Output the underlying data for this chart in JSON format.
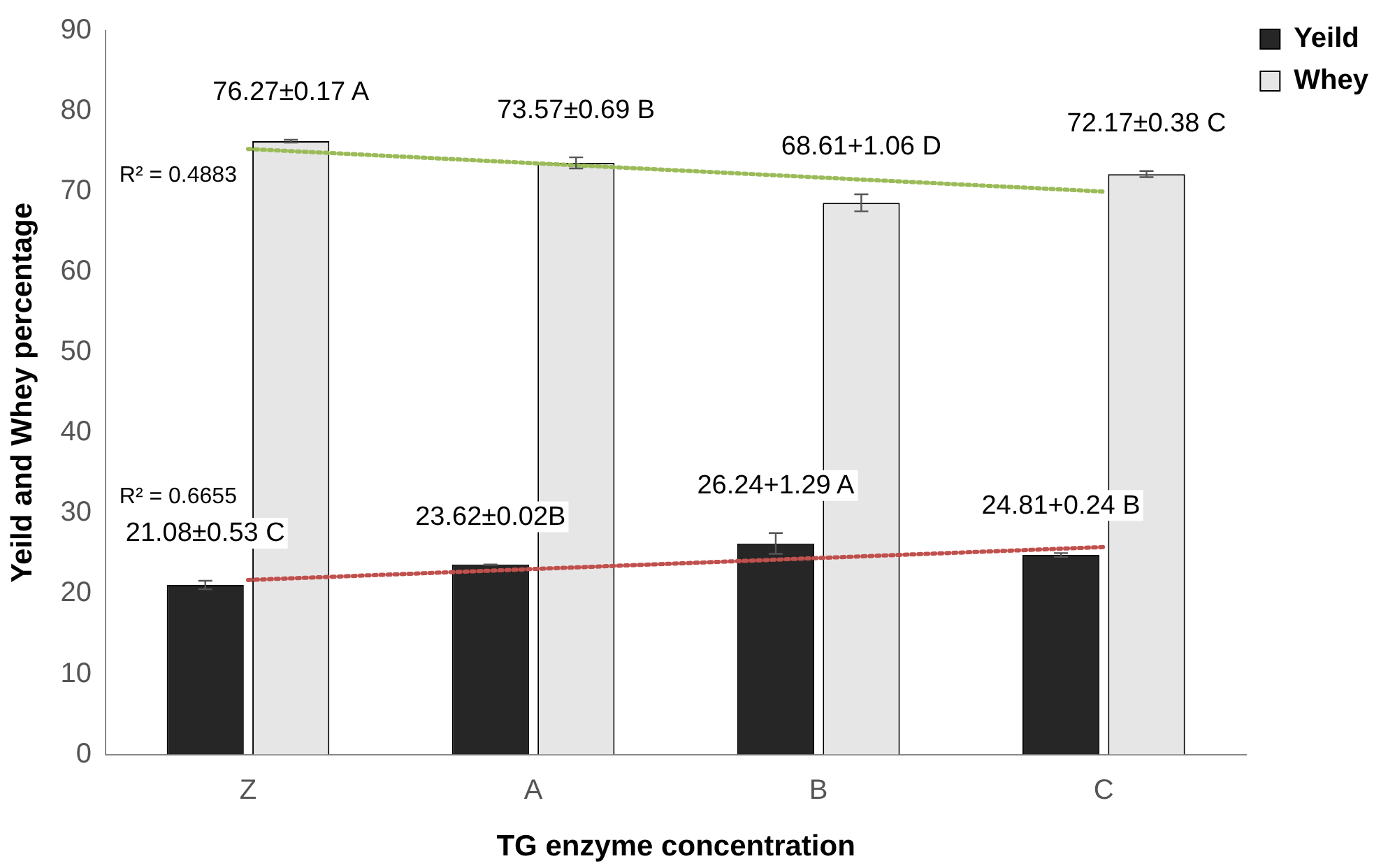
{
  "chart_data": {
    "type": "bar",
    "xlabel": "TG enzyme concentration",
    "ylabel": "Yeild and Whey percentage",
    "categories": [
      "Z",
      "A",
      "B",
      "C"
    ],
    "series": [
      {
        "name": "Yeild",
        "color": "#262626",
        "values": [
          21.08,
          23.62,
          26.24,
          24.81
        ],
        "errors": [
          0.53,
          0.02,
          1.29,
          0.24
        ],
        "value_labels": [
          "21.08±0.53 C",
          "23.62±0.02B",
          "26.24+1.29 A",
          "24.81+0.24 B"
        ]
      },
      {
        "name": "Whey",
        "color": "#e6e6e6",
        "values": [
          76.27,
          73.57,
          68.61,
          72.17
        ],
        "errors": [
          0.17,
          0.69,
          1.06,
          0.38
        ],
        "value_labels": [
          "76.27±0.17 A",
          "73.57±0.69 B",
          "68.61+1.06 D",
          "72.17±0.38 C"
        ]
      },
      {
        "type": "line",
        "color": "#c0504d",
        "x": [
          "Z",
          "C"
        ],
        "values": [
          21.7,
          25.8
        ],
        "line_style": "dotted",
        "marker": "none"
      },
      {
        "type": "line",
        "color": "#9bbb59",
        "x": [
          "Z",
          "C"
        ],
        "values": [
          75.3,
          70.0
        ],
        "line_style": "dotted",
        "marker": "none"
      }
    ],
    "annotations": [
      {
        "text": "R² = 0.4883",
        "x": "Z",
        "y": 72
      },
      {
        "text": "R² = 0.6655",
        "x": "Z",
        "y": 32
      }
    ],
    "ylim": [
      0,
      90
    ],
    "yticks": [
      0,
      10,
      20,
      30,
      40,
      50,
      60,
      70,
      80,
      90
    ],
    "grid": false,
    "legend": "top right"
  }
}
